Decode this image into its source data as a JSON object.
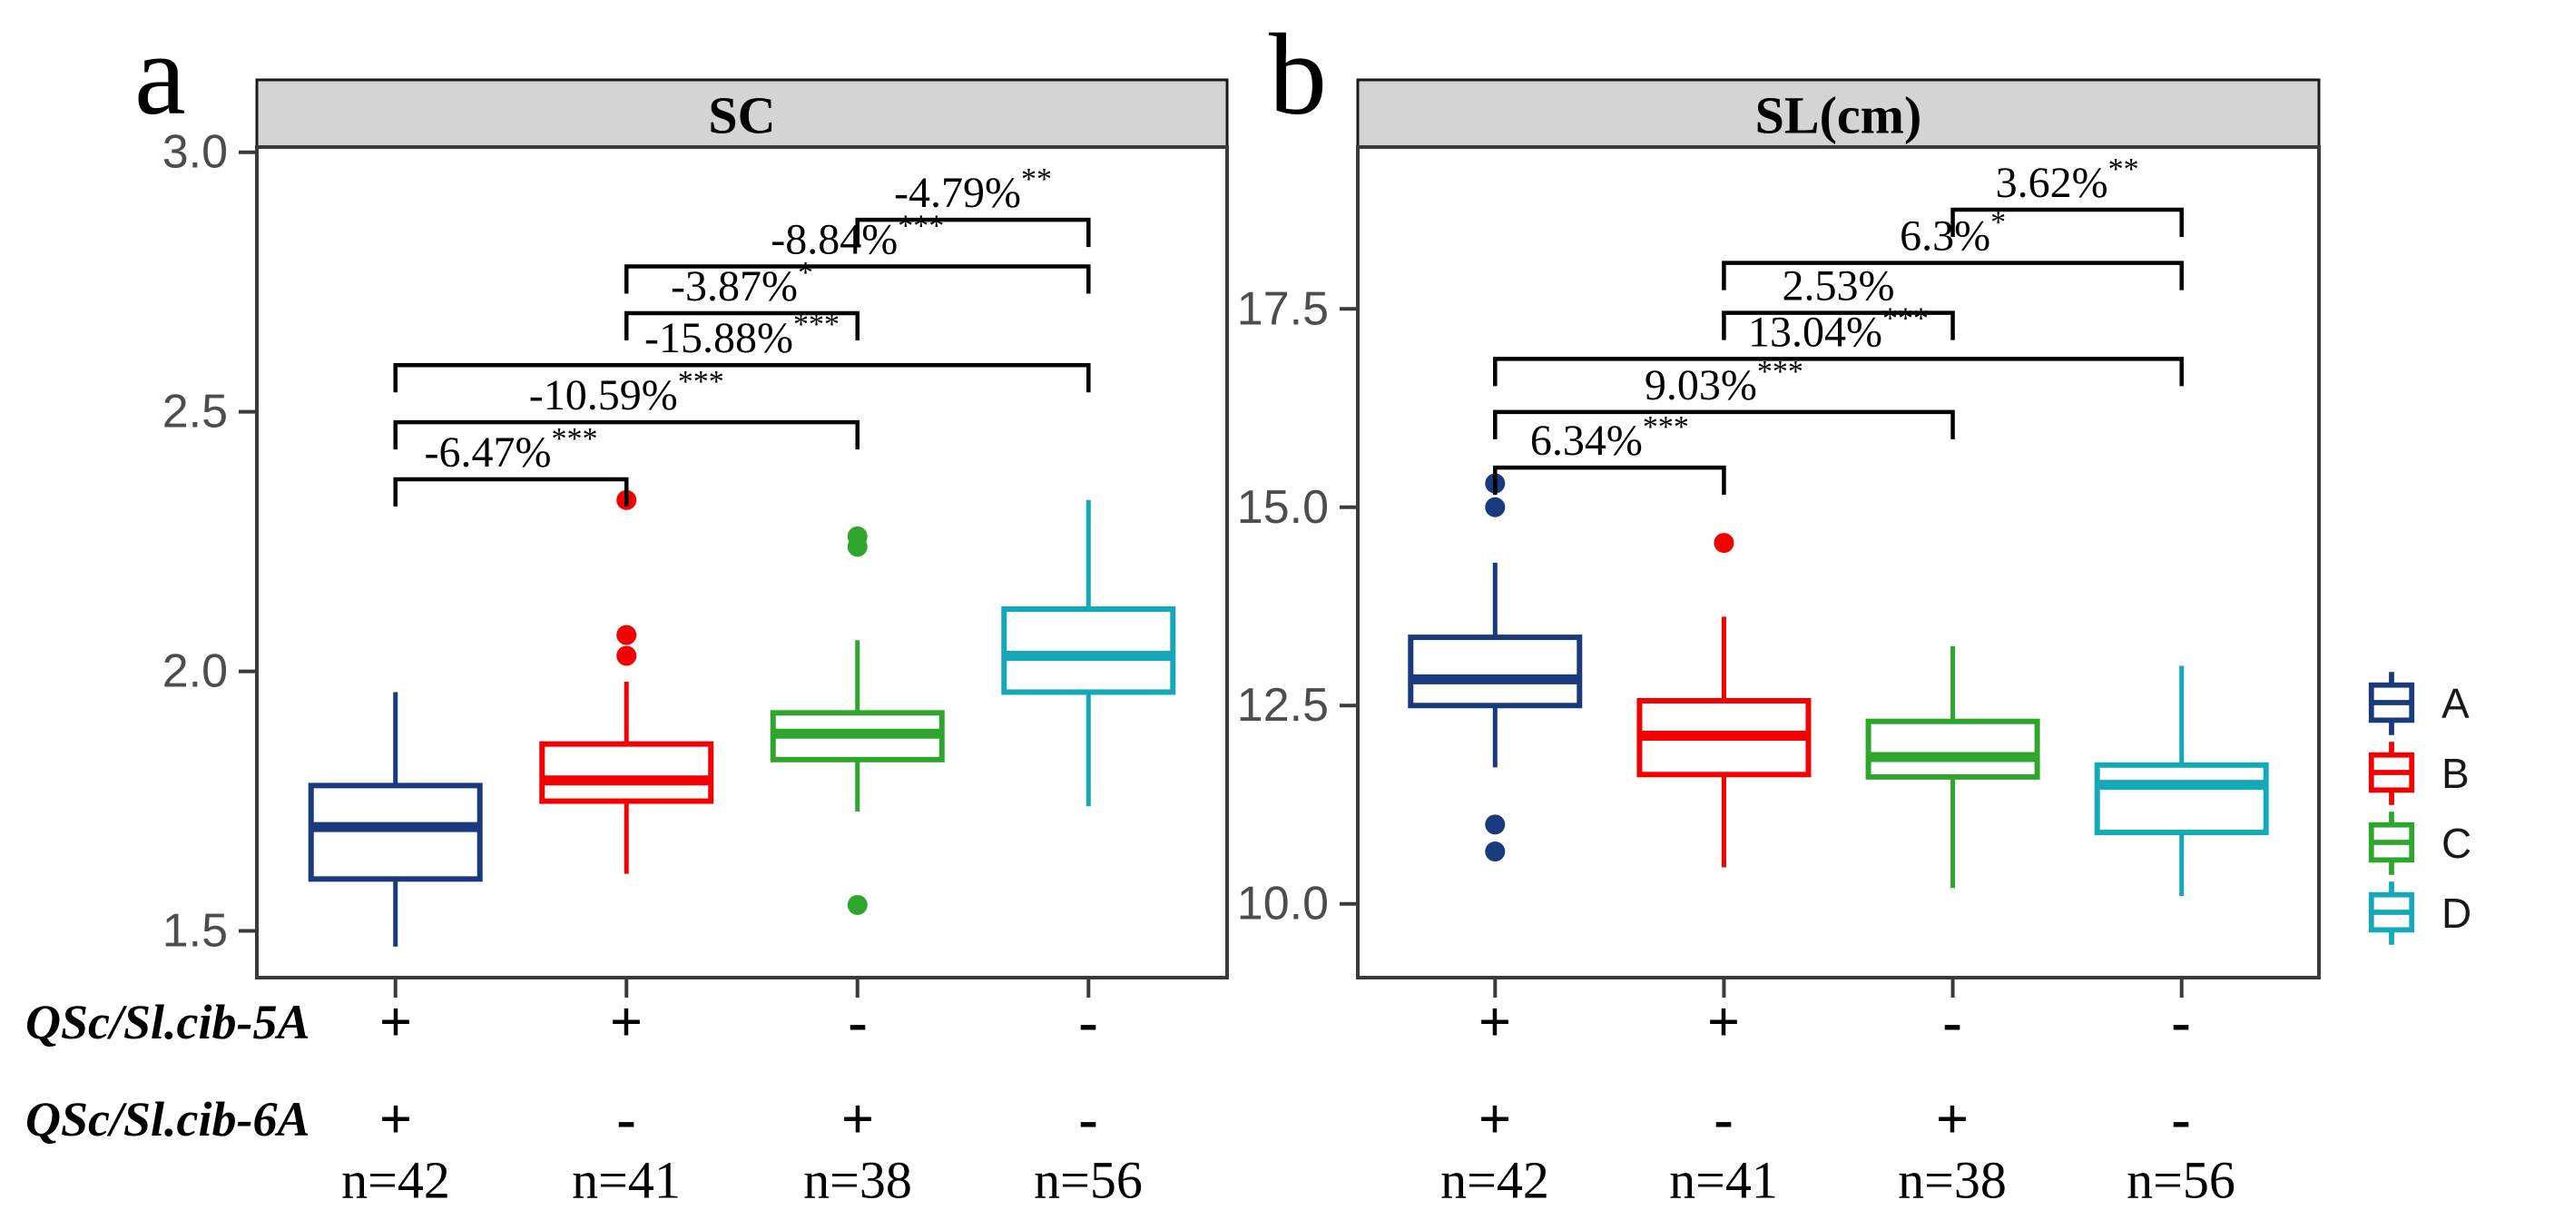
{
  "figure": {
    "panel_a_letter": "a",
    "panel_b_letter": "b",
    "colors": {
      "header_bg": "#D4D4D4",
      "header_border": "#1a1a1a",
      "panel_border": "#3a3a3a",
      "axis_tick_text": "#4d4d4d",
      "bracket": "#000000",
      "group_A": "#1A3A7E",
      "group_B": "#F40000",
      "group_C": "#2EA62E",
      "group_D": "#14A8B8"
    }
  },
  "chart_data": [
    {
      "id": "a",
      "type": "boxplot",
      "panel_letter": "a",
      "title": "SC",
      "ylabel": "",
      "ylim": [
        1.41,
        3.01
      ],
      "grid": false,
      "y_ticks": [
        {
          "value": 3.0,
          "label": "3.0"
        },
        {
          "value": 2.5,
          "label": "2.5"
        },
        {
          "value": 2.0,
          "label": "2.0"
        },
        {
          "value": 1.5,
          "label": "1.5"
        }
      ],
      "series": [
        {
          "name": "A",
          "color": "#1A3A7E",
          "n": 42,
          "whisker_low": 1.47,
          "q1": 1.6,
          "median": 1.7,
          "q3": 1.78,
          "whisker_high": 1.96,
          "outliers": []
        },
        {
          "name": "B",
          "color": "#F40000",
          "n": 41,
          "whisker_low": 1.61,
          "q1": 1.75,
          "median": 1.79,
          "q3": 1.86,
          "whisker_high": 1.98,
          "outliers": [
            2.03,
            2.07,
            2.33
          ]
        },
        {
          "name": "C",
          "color": "#2EA62E",
          "n": 38,
          "whisker_low": 1.73,
          "q1": 1.83,
          "median": 1.88,
          "q3": 1.92,
          "whisker_high": 2.06,
          "outliers": [
            1.55,
            2.24,
            2.26
          ]
        },
        {
          "name": "D",
          "color": "#14A8B8",
          "n": 56,
          "whisker_low": 1.74,
          "q1": 1.96,
          "median": 2.03,
          "q3": 2.12,
          "whisker_high": 2.33,
          "outliers": []
        }
      ],
      "comparisons": [
        {
          "between": [
            "A",
            "B"
          ],
          "label": "-6.47%",
          "stars": "***",
          "height": 2.37
        },
        {
          "between": [
            "A",
            "C"
          ],
          "label": "-10.59%",
          "stars": "***",
          "height": 2.48
        },
        {
          "between": [
            "A",
            "D"
          ],
          "label": "-15.88%",
          "stars": "***",
          "height": 2.59
        },
        {
          "between": [
            "B",
            "C"
          ],
          "label": "-3.87%",
          "stars": "*",
          "height": 2.69
        },
        {
          "between": [
            "B",
            "D"
          ],
          "label": "-8.84%",
          "stars": "***",
          "height": 2.78
        },
        {
          "between": [
            "C",
            "D"
          ],
          "label": "-4.79%",
          "stars": "**",
          "height": 2.87
        }
      ]
    },
    {
      "id": "b",
      "type": "boxplot",
      "panel_letter": "b",
      "title": "SL(cm)",
      "ylabel": "",
      "ylim": [
        9.07,
        19.54
      ],
      "grid": false,
      "y_ticks": [
        {
          "value": 17.5,
          "label": "17.5"
        },
        {
          "value": 15.0,
          "label": "15.0"
        },
        {
          "value": 12.5,
          "label": "12.5"
        },
        {
          "value": 10.0,
          "label": "10.0"
        }
      ],
      "series": [
        {
          "name": "A",
          "color": "#1A3A7E",
          "n": 42,
          "whisker_low": 11.72,
          "q1": 12.5,
          "median": 12.83,
          "q3": 13.36,
          "whisker_high": 14.3,
          "outliers": [
            15.3,
            15.0,
            11.0,
            10.66
          ]
        },
        {
          "name": "B",
          "color": "#F40000",
          "n": 41,
          "whisker_low": 10.46,
          "q1": 11.63,
          "median": 12.12,
          "q3": 12.56,
          "whisker_high": 13.62,
          "outliers": [
            14.55
          ]
        },
        {
          "name": "C",
          "color": "#2EA62E",
          "n": 38,
          "whisker_low": 10.2,
          "q1": 11.6,
          "median": 11.85,
          "q3": 12.3,
          "whisker_high": 13.25,
          "outliers": []
        },
        {
          "name": "D",
          "color": "#14A8B8",
          "n": 56,
          "whisker_low": 10.1,
          "q1": 10.9,
          "median": 11.5,
          "q3": 11.75,
          "whisker_high": 13.0,
          "outliers": []
        }
      ],
      "comparisons": [
        {
          "between": [
            "A",
            "B"
          ],
          "label": "6.34%",
          "stars": "***",
          "height": 15.5
        },
        {
          "between": [
            "A",
            "C"
          ],
          "label": "9.03%",
          "stars": "***",
          "height": 16.2
        },
        {
          "between": [
            "A",
            "D"
          ],
          "label": "13.04%",
          "stars": "***",
          "height": 16.87
        },
        {
          "between": [
            "B",
            "C"
          ],
          "label": "2.53%",
          "stars": "",
          "height": 17.45
        },
        {
          "between": [
            "B",
            "D"
          ],
          "label": "6.3%",
          "stars": "*",
          "height": 18.08
        },
        {
          "between": [
            "C",
            "D"
          ],
          "label": "3.62%",
          "stars": "**",
          "height": 18.75
        }
      ]
    }
  ],
  "genotype_rows": [
    {
      "label": "QSc/Sl.cib-5A",
      "values": [
        "+",
        "+",
        "-",
        "-"
      ]
    },
    {
      "label": "QSc/Sl.cib-6A",
      "values": [
        "+",
        "-",
        "+",
        "-"
      ]
    }
  ],
  "n_row": [
    "n=42",
    "n=41",
    "n=38",
    "n=56"
  ],
  "legend": {
    "items": [
      {
        "label": "A",
        "color": "#1A3A7E"
      },
      {
        "label": "B",
        "color": "#F40000"
      },
      {
        "label": "C",
        "color": "#2EA62E"
      },
      {
        "label": "D",
        "color": "#14A8B8"
      }
    ]
  }
}
